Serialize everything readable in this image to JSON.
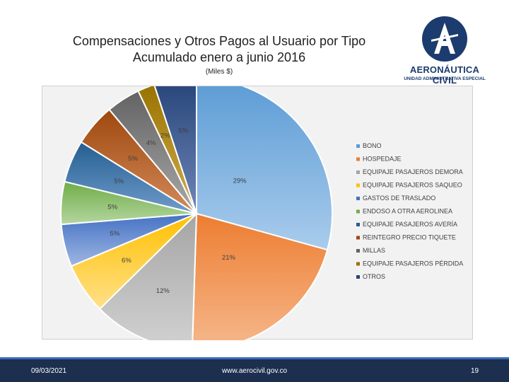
{
  "header": {
    "title_line1": "Compensaciones y Otros Pagos al Usuario por Tipo",
    "title_line2": "Acumulado enero a junio 2016",
    "subtitle": "(Miles $)"
  },
  "logo": {
    "name": "AERONÁUTICA CIVIL",
    "sub": "UNIDAD ADMINISTRATIVA ESPECIAL",
    "mark_letter": "A",
    "color": "#1c3b6e"
  },
  "chart_data": {
    "type": "pie",
    "legend_position": "right",
    "categories": [
      "BONO",
      "HOSPEDAJE",
      "EQUIPAJE PASAJEROS DEMORA",
      "EQUIPAJE PASAJEROS SAQUEO",
      "GASTOS DE TRASLADO",
      "ENDOSO A OTRA AEROLINEA",
      "EQUIPAJE PASAJEROS AVERÍA",
      "REINTEGRO PRECIO TIQUETE",
      "MILLAS",
      "EQUIPAJE PASAJEROS PÉRDIDA",
      "OTROS"
    ],
    "values": [
      29,
      21,
      12,
      6,
      5,
      5,
      5,
      5,
      4,
      2,
      5
    ],
    "labels": [
      "29%",
      "21%",
      "12%",
      "6%",
      "5%",
      "5%",
      "5%",
      "5%",
      "4%",
      "2%",
      "5%"
    ],
    "colors": [
      "#5b9bd5",
      "#ed7d31",
      "#a5a5a5",
      "#ffc000",
      "#4472c4",
      "#70ad47",
      "#255e91",
      "#9e480e",
      "#636363",
      "#997300",
      "#264478"
    ],
    "light_colors": [
      "#a9ccec",
      "#f6b88c",
      "#d2d2d2",
      "#ffe08a",
      "#9fb6e3",
      "#b4d6a0",
      "#6f9ccb",
      "#d48a5a",
      "#a8a8a8",
      "#d1ad4f",
      "#6f86b8"
    ]
  },
  "footer": {
    "date": "09/03/2021",
    "url": "www.aerocivil.gov.co",
    "page": "19"
  }
}
